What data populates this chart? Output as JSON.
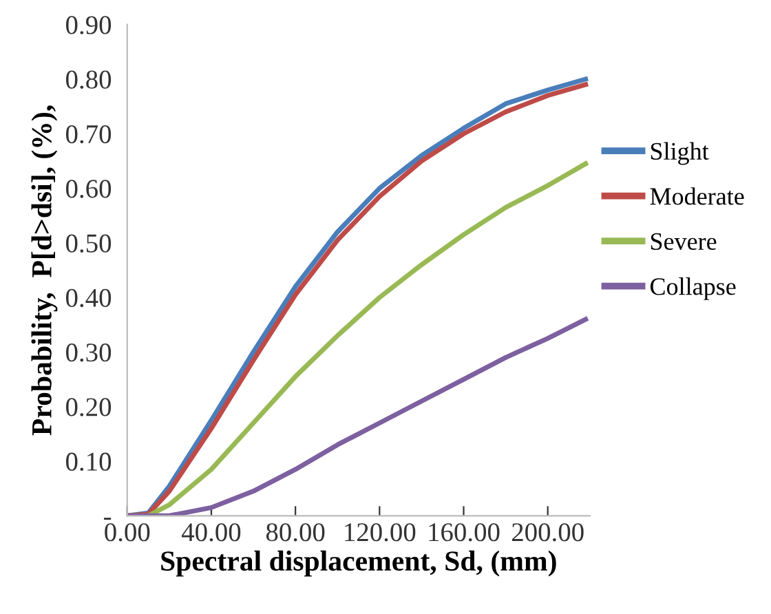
{
  "chart_data": {
    "type": "line",
    "xlabel": "Spectral displacement, Sd, (mm)",
    "ylabel": "Probability,  P[d>dsi], (%),",
    "xlim": [
      0,
      220
    ],
    "ylim": [
      0,
      0.9
    ],
    "xticks": [
      {
        "value": 0,
        "label": "0.00"
      },
      {
        "value": 40,
        "label": "40.00"
      },
      {
        "value": 80,
        "label": "80.00"
      },
      {
        "value": 120,
        "label": "120.00"
      },
      {
        "value": 160,
        "label": "160.00"
      },
      {
        "value": 200,
        "label": "200.00"
      }
    ],
    "yticks": [
      {
        "value": 0,
        "label": "-"
      },
      {
        "value": 0.1,
        "label": "0.10"
      },
      {
        "value": 0.2,
        "label": "0.20"
      },
      {
        "value": 0.3,
        "label": "0.30"
      },
      {
        "value": 0.4,
        "label": "0.40"
      },
      {
        "value": 0.5,
        "label": "0.50"
      },
      {
        "value": 0.6,
        "label": "0.60"
      },
      {
        "value": 0.7,
        "label": "0.70"
      },
      {
        "value": 0.8,
        "label": "0.80"
      },
      {
        "value": 0.9,
        "label": "0.90"
      }
    ],
    "x": [
      0,
      10,
      20,
      40,
      60,
      80,
      100,
      120,
      140,
      160,
      180,
      200,
      218
    ],
    "grid": false,
    "legend": "right",
    "marker": "none",
    "line_style": "solid",
    "series": [
      {
        "name": "Slight",
        "color": "#4a7ebb",
        "values": [
          0,
          0.005,
          0.054,
          0.175,
          0.3,
          0.42,
          0.52,
          0.6,
          0.66,
          0.71,
          0.755,
          0.78,
          0.8
        ]
      },
      {
        "name": "Moderate",
        "color": "#be4b48",
        "values": [
          0,
          0.003,
          0.045,
          0.16,
          0.285,
          0.405,
          0.505,
          0.585,
          0.65,
          0.7,
          0.74,
          0.77,
          0.79
        ]
      },
      {
        "name": "Severe",
        "color": "#98b954",
        "values": [
          0,
          0,
          0.02,
          0.085,
          0.17,
          0.255,
          0.33,
          0.4,
          0.46,
          0.515,
          0.565,
          0.605,
          0.645
        ]
      },
      {
        "name": "Collapse",
        "color": "#7d60a0",
        "values": [
          0,
          0,
          0,
          0.015,
          0.045,
          0.085,
          0.13,
          0.17,
          0.21,
          0.25,
          0.29,
          0.325,
          0.36
        ]
      }
    ]
  }
}
